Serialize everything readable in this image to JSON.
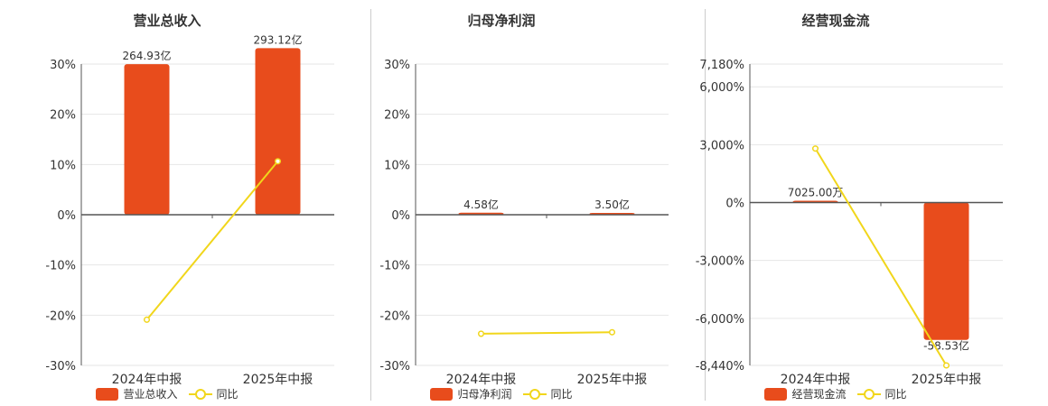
{
  "colors": {
    "bar": "#e84c1c",
    "line": "#f1d61b",
    "grid": "#e6e6e6",
    "axis": "#555555"
  },
  "chart_data": [
    {
      "type": "bar",
      "title": "营业总收入",
      "categories": [
        "2024年中报",
        "2025年中报"
      ],
      "series": [
        {
          "name": "营业总收入",
          "type": "bar",
          "axis": "value",
          "values": [
            264.93,
            293.12
          ],
          "labels": [
            "264.93亿",
            "293.12亿"
          ]
        },
        {
          "name": "同比",
          "type": "line",
          "axis": "percent",
          "values": [
            -20.9,
            10.64
          ]
        }
      ],
      "yticks": [
        "30%",
        "20%",
        "10%",
        "0%",
        "-10%",
        "-20%",
        "-30%"
      ],
      "ylim": [
        -30,
        30
      ],
      "grid": true,
      "legend": [
        "营业总收入",
        "同比"
      ],
      "legend_position": "bottom"
    },
    {
      "type": "bar",
      "title": "归母净利润",
      "categories": [
        "2024年中报",
        "2025年中报"
      ],
      "series": [
        {
          "name": "归母净利润",
          "type": "bar",
          "axis": "value",
          "values": [
            4.58,
            3.5
          ],
          "labels": [
            "4.58亿",
            "3.50亿"
          ]
        },
        {
          "name": "同比",
          "type": "line",
          "axis": "percent",
          "values": [
            -23.7,
            -23.4
          ]
        }
      ],
      "yticks": [
        "30%",
        "20%",
        "10%",
        "0%",
        "-10%",
        "-20%",
        "-30%"
      ],
      "ylim": [
        -30,
        30
      ],
      "grid": true,
      "legend": [
        "归母净利润",
        "同比"
      ],
      "legend_position": "bottom"
    },
    {
      "type": "bar",
      "title": "经营现金流",
      "categories": [
        "2024年中报",
        "2025年中报"
      ],
      "series": [
        {
          "name": "经营现金流",
          "type": "bar",
          "axis": "value",
          "values": [
            0.7025,
            -58.53
          ],
          "labels": [
            "7025.00万",
            "-58.53亿"
          ]
        },
        {
          "name": "同比",
          "type": "line",
          "axis": "percent",
          "values": [
            2800,
            -8440
          ]
        }
      ],
      "yticks": [
        "7,180%",
        "6,000%",
        "3,000%",
        "0%",
        "-3,000%",
        "-6,000%",
        "-8,440%"
      ],
      "ylim": [
        -8440,
        7180
      ],
      "grid": true,
      "legend": [
        "经营现金流",
        "同比"
      ],
      "legend_position": "bottom"
    }
  ]
}
